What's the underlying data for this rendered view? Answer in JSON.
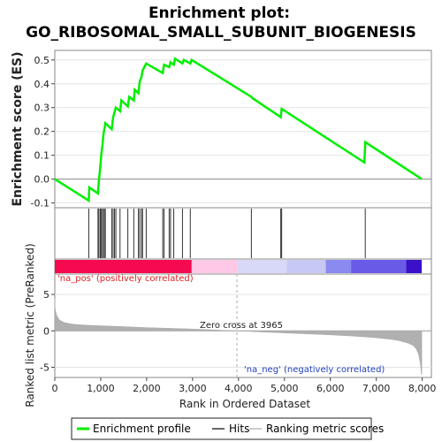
{
  "title_line1": "Enrichment plot:",
  "title_line2": "GO_RIBOSOMAL_SMALL_SUBUNIT_BIOGENESIS",
  "chart_data": [
    {
      "type": "line",
      "panel": "enrichment",
      "ylabel": "Enrichment score (ES)",
      "xlim": [
        0,
        8200
      ],
      "ylim": [
        -0.12,
        0.54
      ],
      "yticks": [
        -0.1,
        0.0,
        0.1,
        0.2,
        0.3,
        0.4,
        0.5
      ],
      "ytick_labels": [
        "-0.1",
        "0.0",
        "0.1",
        "0.2",
        "0.3",
        "0.4",
        "0.5"
      ],
      "grid": true,
      "color": "#00ee00",
      "series": [
        {
          "name": "Enrichment profile",
          "x": [
            0,
            740,
            750,
            940,
            960,
            990,
            1010,
            1040,
            1060,
            1090,
            1100,
            1240,
            1270,
            1300,
            1330,
            1420,
            1450,
            1590,
            1620,
            1720,
            1740,
            1820,
            1850,
            1890,
            1910,
            1990,
            2350,
            2380,
            2490,
            2520,
            2590,
            2620,
            2780,
            2810,
            2950,
            2980,
            4280,
            4300,
            4920,
            4940,
            6740,
            6760,
            7990
          ],
          "y": [
            0.0,
            -0.09,
            -0.035,
            -0.06,
            -0.005,
            0.05,
            0.1,
            0.145,
            0.19,
            0.22,
            0.235,
            0.21,
            0.26,
            0.28,
            0.3,
            0.285,
            0.33,
            0.305,
            0.345,
            0.33,
            0.375,
            0.36,
            0.41,
            0.43,
            0.455,
            0.485,
            0.445,
            0.48,
            0.47,
            0.49,
            0.48,
            0.505,
            0.485,
            0.5,
            0.485,
            0.5,
            0.345,
            0.34,
            0.26,
            0.295,
            0.07,
            0.155,
            0.0
          ]
        }
      ]
    },
    {
      "type": "hits",
      "panel": "hits",
      "series_name": "Hits",
      "positions": [
        740,
        940,
        960,
        990,
        1010,
        1040,
        1060,
        1090,
        1100,
        1240,
        1270,
        1300,
        1330,
        1420,
        1590,
        1720,
        1820,
        1850,
        1890,
        1910,
        1990,
        2350,
        2380,
        2490,
        2520,
        2590,
        2780,
        2950,
        4280,
        4920,
        4940,
        6760
      ]
    },
    {
      "type": "heatmap",
      "panel": "color-bar",
      "segments": [
        {
          "from": 0,
          "to": 2980,
          "color": "#f50a50"
        },
        {
          "from": 2980,
          "to": 3980,
          "color": "#ffc8e6"
        },
        {
          "from": 3980,
          "to": 5050,
          "color": "#d8d8f8"
        },
        {
          "from": 5050,
          "to": 5900,
          "color": "#c8c8f5"
        },
        {
          "from": 5900,
          "to": 6450,
          "color": "#8a8af0"
        },
        {
          "from": 6450,
          "to": 7650,
          "color": "#6a5ae8"
        },
        {
          "from": 7650,
          "to": 7990,
          "color": "#3a10c8"
        }
      ]
    },
    {
      "type": "area",
      "panel": "ranked-list",
      "series_name": "Ranking metric scores",
      "ylabel": "Ranked list metric (PreRanked)",
      "xlabel": "Rank in Ordered Dataset",
      "xlim": [
        0,
        8200
      ],
      "ylim": [
        -6.4,
        7.8
      ],
      "yticks": [
        -5,
        0,
        5
      ],
      "ytick_labels": [
        "-5",
        "0",
        "5"
      ],
      "xticks": [
        0,
        1000,
        2000,
        3000,
        4000,
        5000,
        6000,
        7000,
        8000
      ],
      "xtick_labels": [
        "0",
        "1,000",
        "2,000",
        "3,000",
        "4,000",
        "5,000",
        "6,000",
        "7,000",
        "8,000"
      ],
      "color": "#b0b0b0",
      "x": [
        0,
        5,
        20,
        50,
        100,
        200,
        350,
        500,
        800,
        1200,
        1600,
        2000,
        2500,
        3000,
        3500,
        3965,
        4500,
        5000,
        5500,
        6000,
        6500,
        7000,
        7300,
        7500,
        7700,
        7800,
        7870,
        7920,
        7960,
        7985,
        7990
      ],
      "y": [
        4.5,
        3.2,
        2.6,
        2.0,
        1.5,
        1.15,
        0.95,
        0.85,
        0.75,
        0.65,
        0.55,
        0.45,
        0.35,
        0.25,
        0.12,
        0.0,
        -0.15,
        -0.28,
        -0.42,
        -0.55,
        -0.72,
        -0.95,
        -1.15,
        -1.35,
        -1.7,
        -2.0,
        -2.5,
        -3.2,
        -4.5,
        -6.0,
        -6.0
      ],
      "zero_cross_x": 3965,
      "zero_cross_label": "Zero cross at 3965",
      "pos_label": "'na_pos' (positively correlated)",
      "neg_label": "'na_neg' (negatively correlated)"
    }
  ],
  "legend": {
    "items": [
      {
        "label": "Enrichment profile",
        "color": "#00ee00",
        "kind": "line"
      },
      {
        "label": "Hits",
        "color": "#666666",
        "kind": "line"
      },
      {
        "label": "Ranking metric scores",
        "color": "#cccccc",
        "kind": "line"
      }
    ]
  }
}
